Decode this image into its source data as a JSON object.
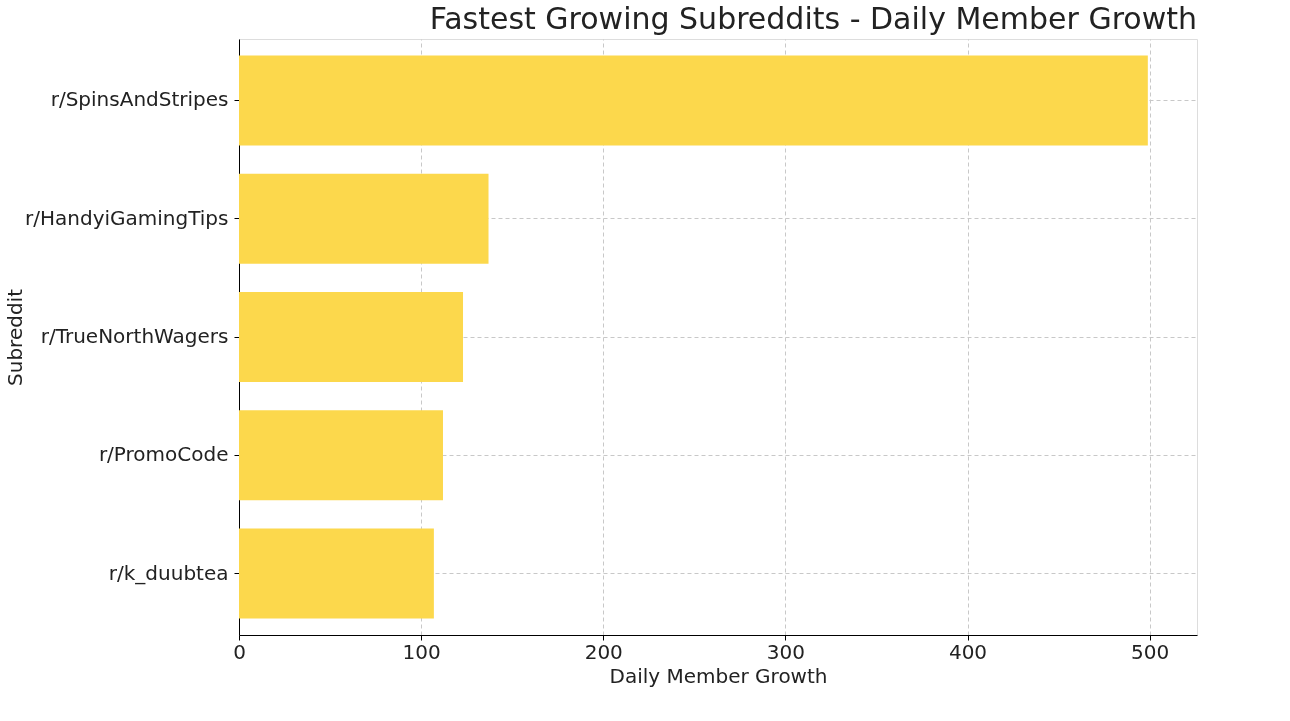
{
  "chart_data": {
    "type": "bar",
    "orientation": "horizontal",
    "title": "Fastest Growing Subreddits - Daily Member Growth",
    "xlabel": "Daily Member Growth",
    "ylabel": "Subreddit",
    "categories": [
      "r/SpinsAndStripes",
      "r/HandyiGamingTips",
      "r/TrueNorthWagers",
      "r/PromoCode",
      "r/k_duubtea"
    ],
    "values": [
      499,
      137,
      123,
      112,
      107
    ],
    "color": "#fcd84c",
    "xlim": [
      0,
      526
    ],
    "xticks": [
      0,
      100,
      200,
      300,
      400,
      500
    ],
    "grid": true
  }
}
